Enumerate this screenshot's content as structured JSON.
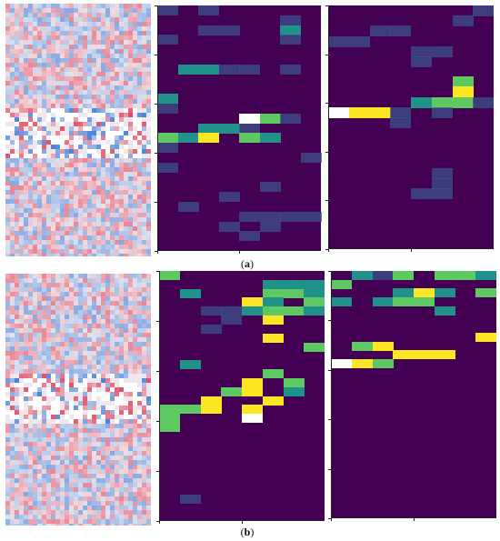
{
  "figure": {
    "panel_a": {
      "label_prefix": "(",
      "label_letter": "a",
      "label_suffix": ")"
    },
    "panel_b": {
      "label_prefix": "(",
      "label_letter": "b",
      "label_suffix": ")"
    }
  },
  "colors": {
    "viridis_dark": "#440154",
    "viridis_low": "#3b528b",
    "viridis_mid": "#21918c",
    "viridis_high": "#5ec962",
    "viridis_top": "#fde725",
    "max_cell": "#ffffff",
    "seismic_positive": "#e0304a",
    "seismic_negative": "#2a6fd6"
  },
  "chart_data": [
    {
      "type": "heatmap",
      "panel": "a",
      "name": "",
      "grid": [
        [
          1,
          0,
          1,
          0,
          0,
          0,
          0,
          0
        ],
        [
          0,
          0,
          0,
          0,
          0,
          0,
          1,
          0
        ],
        [
          0,
          0,
          1,
          1,
          0,
          0,
          2,
          0
        ],
        [
          1,
          0,
          0,
          0,
          0,
          0,
          1,
          0
        ],
        [
          0,
          0,
          0,
          0,
          0,
          0,
          0,
          0
        ],
        [
          0,
          0,
          0,
          0,
          0,
          0,
          0,
          0
        ],
        [
          0,
          2,
          2,
          1,
          1,
          0,
          1,
          0
        ],
        [
          0,
          0,
          0,
          0,
          0,
          0,
          0,
          0
        ],
        [
          0,
          0,
          0,
          0,
          0,
          0,
          0,
          0
        ],
        [
          2,
          0,
          0,
          0,
          0,
          0,
          0,
          0
        ],
        [
          1,
          0,
          0,
          0,
          0,
          0,
          0,
          0
        ],
        [
          0,
          0,
          0,
          0,
          5,
          3,
          1,
          0
        ],
        [
          0,
          0,
          2,
          2,
          1,
          0,
          0,
          0
        ],
        [
          3,
          2,
          4,
          0,
          3,
          2,
          0,
          0
        ],
        [
          1,
          0,
          0,
          0,
          0,
          0,
          0,
          0
        ],
        [
          0,
          0,
          0,
          0,
          0,
          0,
          0,
          1
        ],
        [
          1,
          0,
          0,
          0,
          0,
          0,
          0,
          0
        ],
        [
          0,
          0,
          0,
          0,
          0,
          0,
          0,
          0
        ],
        [
          0,
          0,
          0,
          0,
          0,
          1,
          0,
          0
        ],
        [
          0,
          0,
          0,
          1,
          0,
          0,
          0,
          0
        ],
        [
          0,
          1,
          0,
          0,
          0,
          0,
          0,
          0
        ],
        [
          0,
          0,
          0,
          0,
          1,
          1,
          1,
          1
        ],
        [
          0,
          0,
          0,
          1,
          0,
          1,
          0,
          0
        ],
        [
          0,
          0,
          0,
          0,
          1,
          0,
          0,
          0
        ],
        [
          0,
          0,
          0,
          0,
          0,
          0,
          0,
          0
        ]
      ]
    },
    {
      "type": "heatmap",
      "panel": "a",
      "name": "",
      "grid": [
        [
          0,
          0,
          0,
          0,
          0,
          0,
          0,
          1
        ],
        [
          0,
          0,
          0,
          0,
          0,
          0,
          1,
          0
        ],
        [
          0,
          0,
          1,
          1,
          0,
          0,
          0,
          0
        ],
        [
          1,
          1,
          0,
          0,
          0,
          0,
          0,
          0
        ],
        [
          0,
          0,
          0,
          0,
          1,
          1,
          0,
          0
        ],
        [
          0,
          0,
          0,
          0,
          1,
          0,
          0,
          0
        ],
        [
          0,
          0,
          0,
          0,
          0,
          0,
          0,
          0
        ],
        [
          0,
          0,
          0,
          0,
          0,
          0,
          3,
          0
        ],
        [
          0,
          0,
          0,
          0,
          0,
          0,
          4,
          0
        ],
        [
          0,
          0,
          0,
          0,
          2,
          3,
          3,
          1
        ],
        [
          5,
          4,
          4,
          1,
          0,
          1,
          0,
          0
        ],
        [
          0,
          0,
          0,
          1,
          0,
          0,
          0,
          0
        ],
        [
          0,
          0,
          0,
          0,
          0,
          0,
          0,
          0
        ],
        [
          0,
          0,
          0,
          0,
          0,
          0,
          0,
          0
        ],
        [
          0,
          0,
          0,
          0,
          0,
          0,
          0,
          0
        ],
        [
          0,
          0,
          0,
          0,
          0,
          0,
          0,
          0
        ],
        [
          0,
          0,
          0,
          0,
          0,
          1,
          0,
          0
        ],
        [
          0,
          0,
          0,
          0,
          0,
          1,
          0,
          0
        ],
        [
          0,
          0,
          0,
          0,
          1,
          1,
          0,
          0
        ],
        [
          0,
          0,
          0,
          0,
          0,
          0,
          0,
          0
        ],
        [
          0,
          0,
          0,
          0,
          0,
          0,
          0,
          0
        ],
        [
          0,
          0,
          0,
          0,
          0,
          0,
          0,
          0
        ],
        [
          0,
          0,
          0,
          0,
          0,
          0,
          0,
          0
        ],
        [
          0,
          0,
          0,
          0,
          0,
          0,
          0,
          0
        ]
      ]
    },
    {
      "type": "heatmap",
      "panel": "b",
      "name": "",
      "grid": [
        [
          3,
          0,
          0,
          0,
          0,
          0,
          0,
          0
        ],
        [
          0,
          0,
          0,
          0,
          0,
          2,
          2,
          2
        ],
        [
          0,
          2,
          0,
          0,
          0,
          3,
          3,
          2
        ],
        [
          0,
          0,
          0,
          0,
          4,
          2,
          0,
          3
        ],
        [
          0,
          0,
          1,
          1,
          2,
          3,
          3,
          2
        ],
        [
          0,
          0,
          0,
          1,
          0,
          4,
          0,
          0
        ],
        [
          0,
          0,
          1,
          0,
          0,
          0,
          0,
          0
        ],
        [
          0,
          0,
          0,
          0,
          0,
          4,
          0,
          0
        ],
        [
          0,
          0,
          0,
          0,
          0,
          0,
          0,
          3
        ],
        [
          0,
          0,
          0,
          0,
          0,
          0,
          0,
          0
        ],
        [
          0,
          2,
          0,
          0,
          0,
          0,
          0,
          0
        ],
        [
          0,
          0,
          0,
          0,
          0,
          3,
          0,
          0
        ],
        [
          0,
          0,
          0,
          0,
          4,
          0,
          3,
          0
        ],
        [
          0,
          0,
          0,
          3,
          4,
          0,
          2,
          0
        ],
        [
          0,
          0,
          4,
          0,
          0,
          4,
          0,
          0
        ],
        [
          3,
          3,
          4,
          0,
          4,
          0,
          0,
          0
        ],
        [
          3,
          0,
          0,
          0,
          5,
          0,
          0,
          0
        ],
        [
          3,
          0,
          0,
          0,
          0,
          0,
          0,
          0
        ],
        [
          0,
          0,
          0,
          0,
          0,
          0,
          0,
          0
        ],
        [
          0,
          0,
          0,
          0,
          0,
          0,
          0,
          0
        ],
        [
          0,
          0,
          0,
          0,
          0,
          0,
          0,
          0
        ],
        [
          0,
          0,
          0,
          0,
          0,
          0,
          0,
          0
        ],
        [
          0,
          0,
          0,
          0,
          0,
          0,
          0,
          0
        ],
        [
          0,
          0,
          0,
          0,
          0,
          0,
          0,
          0
        ],
        [
          0,
          0,
          0,
          0,
          0,
          0,
          0,
          0
        ],
        [
          0,
          1,
          0,
          0,
          0,
          0,
          0,
          0
        ],
        [
          0,
          0,
          0,
          0,
          0,
          0,
          0,
          0
        ],
        [
          0,
          0,
          0,
          0,
          0,
          0,
          0,
          0
        ]
      ]
    },
    {
      "type": "heatmap",
      "panel": "b",
      "name": "",
      "grid": [
        [
          0,
          2,
          1,
          3,
          0,
          3,
          3,
          2
        ],
        [
          3,
          0,
          0,
          0,
          0,
          0,
          0,
          0
        ],
        [
          0,
          0,
          0,
          2,
          4,
          2,
          0,
          3
        ],
        [
          2,
          0,
          2,
          3,
          3,
          0,
          0,
          0
        ],
        [
          0,
          0,
          0,
          0,
          0,
          2,
          0,
          0
        ],
        [
          0,
          0,
          0,
          0,
          0,
          0,
          0,
          0
        ],
        [
          0,
          0,
          0,
          0,
          0,
          0,
          0,
          0
        ],
        [
          0,
          0,
          0,
          0,
          0,
          0,
          0,
          4
        ],
        [
          0,
          3,
          4,
          0,
          0,
          0,
          0,
          0
        ],
        [
          0,
          0,
          0,
          4,
          4,
          4,
          0,
          0
        ],
        [
          5,
          4,
          3,
          0,
          0,
          0,
          0,
          0
        ],
        [
          0,
          0,
          0,
          0,
          0,
          0,
          0,
          0
        ],
        [
          0,
          0,
          0,
          0,
          0,
          0,
          0,
          0
        ],
        [
          0,
          0,
          0,
          0,
          0,
          0,
          0,
          0
        ],
        [
          0,
          0,
          0,
          0,
          0,
          0,
          0,
          0
        ],
        [
          0,
          0,
          0,
          0,
          0,
          0,
          0,
          0
        ],
        [
          0,
          0,
          0,
          0,
          0,
          0,
          0,
          0
        ],
        [
          0,
          0,
          0,
          0,
          0,
          0,
          0,
          0
        ],
        [
          0,
          0,
          0,
          0,
          0,
          0,
          0,
          0
        ],
        [
          0,
          0,
          0,
          0,
          0,
          0,
          0,
          0
        ],
        [
          0,
          0,
          0,
          0,
          0,
          0,
          0,
          0
        ],
        [
          0,
          0,
          0,
          0,
          0,
          0,
          0,
          0
        ],
        [
          0,
          0,
          0,
          0,
          0,
          0,
          0,
          0
        ],
        [
          0,
          0,
          0,
          0,
          0,
          0,
          0,
          0
        ],
        [
          0,
          0,
          0,
          0,
          0,
          0,
          0,
          0
        ],
        [
          0,
          0,
          0,
          0,
          0,
          0,
          0,
          0
        ],
        [
          0,
          0,
          0,
          0,
          0,
          0,
          0,
          0
        ],
        [
          0,
          0,
          0,
          0,
          0,
          0,
          0,
          0
        ]
      ]
    }
  ]
}
